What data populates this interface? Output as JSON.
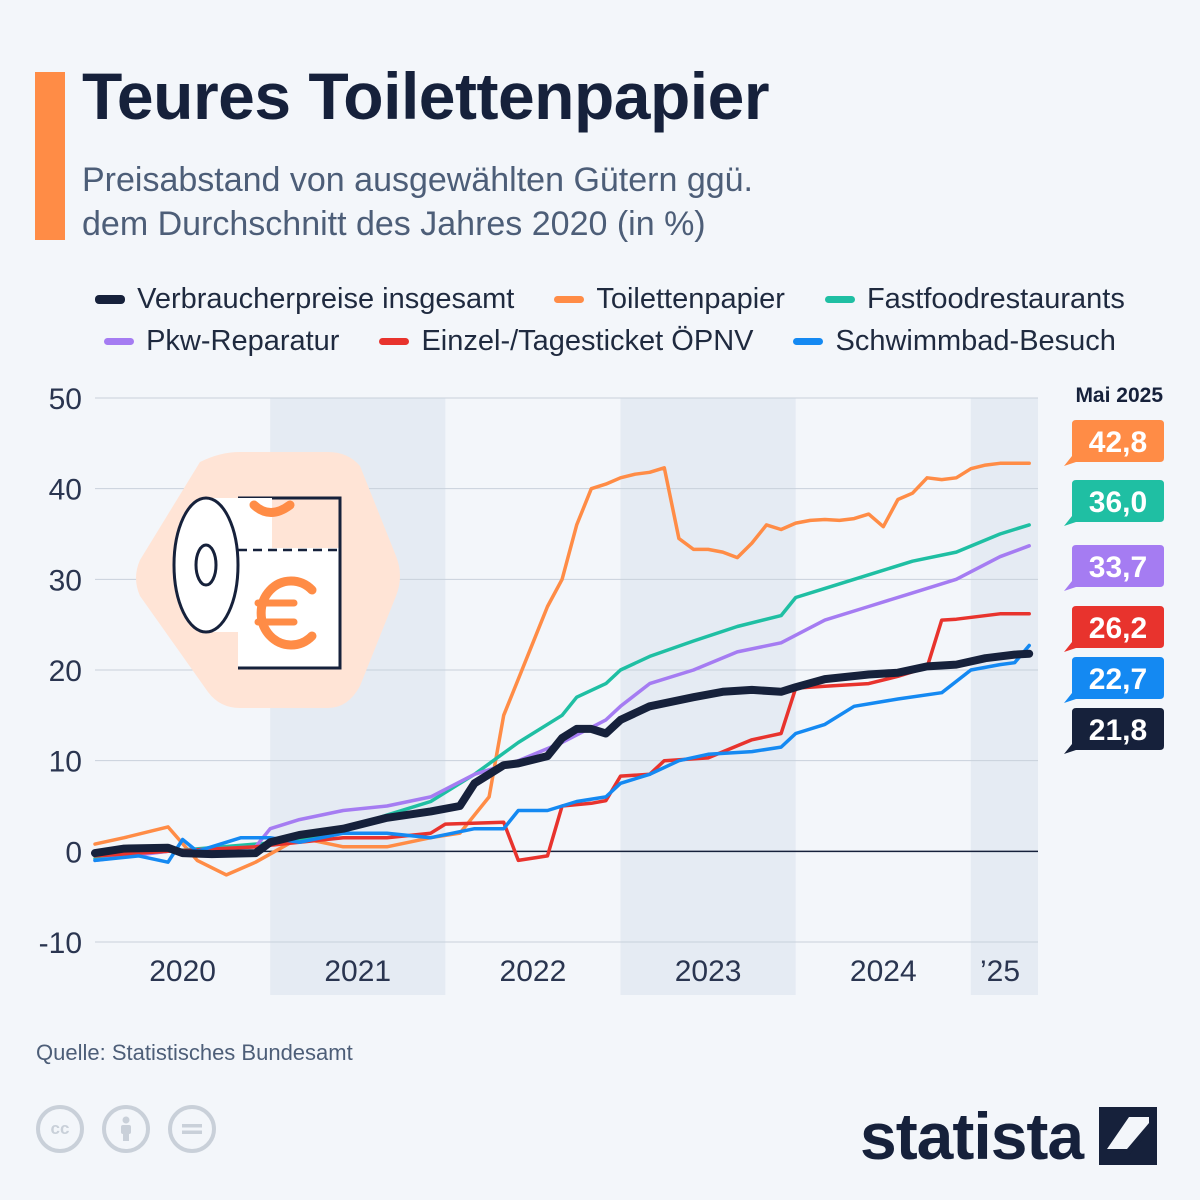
{
  "header": {
    "title": "Teures Toilettenpapier",
    "subtitle_line1": "Preisabstand von ausgewählten Gütern ggü.",
    "subtitle_line2": "dem Durchschnitt des Jahres 2020 (in %)"
  },
  "footer": {
    "source": "Quelle: Statistisches Bundesamt",
    "brand": "statista",
    "license_icons": [
      "cc-icon",
      "by-icon",
      "nd-icon"
    ]
  },
  "chart_data": {
    "type": "line",
    "title": "Teures Toilettenpapier",
    "subtitle": "Preisabstand von ausgewählten Gütern ggü. dem Durchschnitt des Jahres 2020 (in %)",
    "x_start": "2020-01",
    "x_end": "2025-05",
    "x_tick_labels": [
      {
        "label": "2020",
        "at": "2020-07"
      },
      {
        "label": "2021",
        "at": "2021-07"
      },
      {
        "label": "2022",
        "at": "2022-07"
      },
      {
        "label": "2023",
        "at": "2023-07"
      },
      {
        "label": "2024",
        "at": "2024-07"
      },
      {
        "label": "’25",
        "at": "2025-03"
      }
    ],
    "y_ticks": [
      50,
      40,
      30,
      20,
      10,
      0,
      -10
    ],
    "y_tick_labels": [
      "50",
      "40",
      "30",
      "20",
      "10",
      "0",
      "-10"
    ],
    "ylim": [
      -10,
      50
    ],
    "grid": true,
    "shaded_bands": [
      "2021",
      "2023",
      "2025"
    ],
    "end_label_header": "Mai 2025",
    "series": [
      {
        "name": "Toilettenpapier",
        "color": "#ff8c46",
        "end_label": "42,8",
        "points": [
          [
            "2020-01",
            0.8
          ],
          [
            "2020-03",
            1.5
          ],
          [
            "2020-06",
            2.7
          ],
          [
            "2020-08",
            -1.0
          ],
          [
            "2020-10",
            -2.6
          ],
          [
            "2020-12",
            -1.2
          ],
          [
            "2021-03",
            1.5
          ],
          [
            "2021-06",
            0.5
          ],
          [
            "2021-09",
            0.5
          ],
          [
            "2021-12",
            1.5
          ],
          [
            "2022-02",
            2.0
          ],
          [
            "2022-04",
            6.0
          ],
          [
            "2022-05",
            15.0
          ],
          [
            "2022-06",
            19.0
          ],
          [
            "2022-07",
            23.0
          ],
          [
            "2022-08",
            27.0
          ],
          [
            "2022-09",
            30.0
          ],
          [
            "2022-10",
            36.0
          ],
          [
            "2022-11",
            40.0
          ],
          [
            "2022-12",
            40.5
          ],
          [
            "2023-01",
            41.2
          ],
          [
            "2023-02",
            41.6
          ],
          [
            "2023-03",
            41.8
          ],
          [
            "2023-04",
            42.3
          ],
          [
            "2023-05",
            34.5
          ],
          [
            "2023-06",
            33.3
          ],
          [
            "2023-07",
            33.3
          ],
          [
            "2023-08",
            33.0
          ],
          [
            "2023-09",
            32.4
          ],
          [
            "2023-10",
            34.0
          ],
          [
            "2023-11",
            36.0
          ],
          [
            "2023-12",
            35.5
          ],
          [
            "2024-01",
            36.2
          ],
          [
            "2024-02",
            36.5
          ],
          [
            "2024-03",
            36.6
          ],
          [
            "2024-04",
            36.5
          ],
          [
            "2024-05",
            36.7
          ],
          [
            "2024-06",
            37.2
          ],
          [
            "2024-07",
            35.8
          ],
          [
            "2024-08",
            38.8
          ],
          [
            "2024-09",
            39.5
          ],
          [
            "2024-10",
            41.2
          ],
          [
            "2024-11",
            41.0
          ],
          [
            "2024-12",
            41.2
          ],
          [
            "2025-01",
            42.2
          ],
          [
            "2025-02",
            42.6
          ],
          [
            "2025-03",
            42.8
          ],
          [
            "2025-04",
            42.8
          ],
          [
            "2025-05",
            42.8
          ]
        ]
      },
      {
        "name": "Fastfoodrestaurants",
        "color": "#1fbfa3",
        "end_label": "36,0",
        "points": [
          [
            "2020-01",
            -0.8
          ],
          [
            "2020-06",
            0.0
          ],
          [
            "2020-12",
            0.8
          ],
          [
            "2021-03",
            1.2
          ],
          [
            "2021-06",
            2.5
          ],
          [
            "2021-09",
            4.0
          ],
          [
            "2021-12",
            5.5
          ],
          [
            "2022-03",
            8.5
          ],
          [
            "2022-06",
            12.0
          ],
          [
            "2022-09",
            15.0
          ],
          [
            "2022-10",
            17.0
          ],
          [
            "2022-12",
            18.5
          ],
          [
            "2023-01",
            20.0
          ],
          [
            "2023-03",
            21.5
          ],
          [
            "2023-06",
            23.2
          ],
          [
            "2023-09",
            24.8
          ],
          [
            "2023-12",
            26.0
          ],
          [
            "2024-01",
            28.0
          ],
          [
            "2024-03",
            29.0
          ],
          [
            "2024-06",
            30.5
          ],
          [
            "2024-09",
            32.0
          ],
          [
            "2024-12",
            33.0
          ],
          [
            "2025-03",
            35.0
          ],
          [
            "2025-05",
            36.0
          ]
        ]
      },
      {
        "name": "Pkw-Reparatur",
        "color": "#a57cf2",
        "end_label": "33,7",
        "points": [
          [
            "2020-01",
            -1.0
          ],
          [
            "2020-06",
            0.0
          ],
          [
            "2020-12",
            0.5
          ],
          [
            "2021-01",
            2.5
          ],
          [
            "2021-03",
            3.5
          ],
          [
            "2021-06",
            4.5
          ],
          [
            "2021-09",
            5.0
          ],
          [
            "2021-12",
            6.0
          ],
          [
            "2022-03",
            8.5
          ],
          [
            "2022-06",
            10.0
          ],
          [
            "2022-09",
            12.0
          ],
          [
            "2022-12",
            14.5
          ],
          [
            "2023-01",
            16.0
          ],
          [
            "2023-03",
            18.5
          ],
          [
            "2023-06",
            20.0
          ],
          [
            "2023-09",
            22.0
          ],
          [
            "2023-12",
            23.0
          ],
          [
            "2024-03",
            25.5
          ],
          [
            "2024-06",
            27.0
          ],
          [
            "2024-09",
            28.5
          ],
          [
            "2024-12",
            30.0
          ],
          [
            "2025-03",
            32.5
          ],
          [
            "2025-05",
            33.7
          ]
        ]
      },
      {
        "name": "Einzel-/Tagesticket ÖPNV",
        "color": "#e8332d",
        "end_label": "26,2",
        "points": [
          [
            "2020-01",
            -0.5
          ],
          [
            "2020-06",
            0.0
          ],
          [
            "2020-12",
            0.5
          ],
          [
            "2021-03",
            1.0
          ],
          [
            "2021-06",
            1.5
          ],
          [
            "2021-09",
            1.5
          ],
          [
            "2021-12",
            2.0
          ],
          [
            "2022-01",
            3.0
          ],
          [
            "2022-05",
            3.2
          ],
          [
            "2022-06",
            -1.0
          ],
          [
            "2022-08",
            -0.5
          ],
          [
            "2022-09",
            5.0
          ],
          [
            "2022-11",
            5.3
          ],
          [
            "2022-12",
            5.6
          ],
          [
            "2023-01",
            8.3
          ],
          [
            "2023-03",
            8.5
          ],
          [
            "2023-04",
            10.0
          ],
          [
            "2023-07",
            10.3
          ],
          [
            "2023-10",
            12.3
          ],
          [
            "2023-12",
            13.0
          ],
          [
            "2024-01",
            18.0
          ],
          [
            "2024-03",
            18.2
          ],
          [
            "2024-06",
            18.5
          ],
          [
            "2024-08",
            19.3
          ],
          [
            "2024-10",
            20.3
          ],
          [
            "2024-11",
            25.5
          ],
          [
            "2024-12",
            25.6
          ],
          [
            "2025-03",
            26.2
          ],
          [
            "2025-05",
            26.2
          ]
        ]
      },
      {
        "name": "Schwimmbad-Besuch",
        "color": "#1489f2",
        "end_label": "22,7",
        "points": [
          [
            "2020-01",
            -1.0
          ],
          [
            "2020-04",
            -0.5
          ],
          [
            "2020-06",
            -1.2
          ],
          [
            "2020-07",
            1.3
          ],
          [
            "2020-08",
            0.0
          ],
          [
            "2020-11",
            1.5
          ],
          [
            "2021-01",
            1.5
          ],
          [
            "2021-03",
            1.0
          ],
          [
            "2021-06",
            2.0
          ],
          [
            "2021-09",
            2.0
          ],
          [
            "2021-12",
            1.5
          ],
          [
            "2022-03",
            2.5
          ],
          [
            "2022-05",
            2.5
          ],
          [
            "2022-06",
            4.5
          ],
          [
            "2022-08",
            4.5
          ],
          [
            "2022-10",
            5.5
          ],
          [
            "2022-12",
            6.0
          ],
          [
            "2023-01",
            7.5
          ],
          [
            "2023-03",
            8.5
          ],
          [
            "2023-05",
            10.0
          ],
          [
            "2023-07",
            10.7
          ],
          [
            "2023-10",
            11.0
          ],
          [
            "2023-12",
            11.5
          ],
          [
            "2024-01",
            13.0
          ],
          [
            "2024-03",
            14.0
          ],
          [
            "2024-05",
            16.0
          ],
          [
            "2024-08",
            16.8
          ],
          [
            "2024-11",
            17.5
          ],
          [
            "2025-01",
            20.0
          ],
          [
            "2025-03",
            20.6
          ],
          [
            "2025-04",
            20.8
          ],
          [
            "2025-05",
            22.7
          ]
        ]
      },
      {
        "name": "Verbraucherpreise insgesamt",
        "color": "#16213b",
        "end_label": "21,8",
        "points": [
          [
            "2020-01",
            -0.2
          ],
          [
            "2020-03",
            0.3
          ],
          [
            "2020-06",
            0.4
          ],
          [
            "2020-07",
            -0.2
          ],
          [
            "2020-09",
            -0.3
          ],
          [
            "2020-12",
            -0.2
          ],
          [
            "2021-01",
            1.0
          ],
          [
            "2021-03",
            1.8
          ],
          [
            "2021-06",
            2.5
          ],
          [
            "2021-09",
            3.7
          ],
          [
            "2021-12",
            4.4
          ],
          [
            "2022-02",
            5.0
          ],
          [
            "2022-03",
            7.5
          ],
          [
            "2022-05",
            9.5
          ],
          [
            "2022-06",
            9.7
          ],
          [
            "2022-08",
            10.5
          ],
          [
            "2022-09",
            12.5
          ],
          [
            "2022-10",
            13.5
          ],
          [
            "2022-11",
            13.5
          ],
          [
            "2022-12",
            13.0
          ],
          [
            "2023-01",
            14.5
          ],
          [
            "2023-03",
            16.0
          ],
          [
            "2023-06",
            17.0
          ],
          [
            "2023-08",
            17.6
          ],
          [
            "2023-10",
            17.8
          ],
          [
            "2023-12",
            17.6
          ],
          [
            "2024-01",
            18.1
          ],
          [
            "2024-03",
            19.0
          ],
          [
            "2024-06",
            19.5
          ],
          [
            "2024-08",
            19.7
          ],
          [
            "2024-10",
            20.4
          ],
          [
            "2024-12",
            20.6
          ],
          [
            "2025-02",
            21.3
          ],
          [
            "2025-04",
            21.7
          ],
          [
            "2025-05",
            21.8
          ]
        ]
      }
    ],
    "legend_order": [
      "Verbraucherpreise insgesamt",
      "Toilettenpapier",
      "Fastfoodrestaurants",
      "Pkw-Reparatur",
      "Einzel-/Tagesticket ÖPNV",
      "Schwimmbad-Besuch"
    ],
    "legend_placement": "top",
    "illustration": {
      "icon": "toilet-paper-euro-icon",
      "colors": {
        "badge": "#ffe4d6",
        "euro": "#ff8c46",
        "outline": "#16213b"
      }
    }
  },
  "colors": {
    "accent": "#ff8c46",
    "background": "#f3f6fa",
    "band": "#e5ebf3",
    "text_dark": "#16213b",
    "text_muted": "#4d5e78"
  }
}
